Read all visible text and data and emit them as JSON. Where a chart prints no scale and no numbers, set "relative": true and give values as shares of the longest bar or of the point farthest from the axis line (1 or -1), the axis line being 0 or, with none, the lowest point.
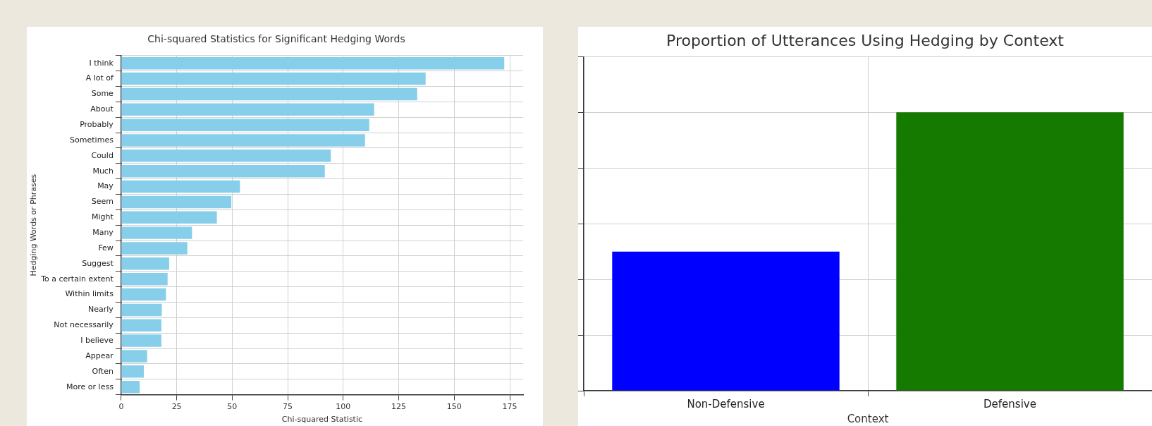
{
  "chart_data": [
    {
      "type": "bar",
      "orientation": "horizontal",
      "title": "Chi-squared Statistics for Significant Hedging Words",
      "xlabel": "Chi-squared Statistic",
      "ylabel": "Hedging Words or Phrases",
      "categories": [
        "I think",
        "A lot of",
        "Some",
        "About",
        "Probably",
        "Sometimes",
        "Could",
        "Much",
        "May",
        "Seem",
        "Might",
        "Many",
        "Few",
        "Suggest",
        "To a certain extent",
        "Within limits",
        "Nearly",
        "Not necessarily",
        "I believe",
        "Appear",
        "Often",
        "More or less"
      ],
      "values": [
        172.5,
        137.1,
        133.3,
        113.9,
        111.7,
        109.8,
        94.4,
        91.7,
        53.5,
        49.6,
        43.1,
        31.9,
        29.8,
        21.6,
        20.9,
        20.2,
        18.3,
        18.1,
        18.1,
        11.7,
        10.2,
        8.3
      ],
      "color": "#87ceeb",
      "xlim": [
        0,
        181
      ],
      "xticks": [
        0,
        25,
        50,
        75,
        100,
        125,
        150,
        175
      ],
      "grid": true
    },
    {
      "type": "bar",
      "title": "Proportion of Utterances Using Hedging by Context",
      "xlabel": "Context",
      "categories": [
        "Non-Defensive",
        "Defensive"
      ],
      "values": [
        0.5,
        1
      ],
      "colors": [
        "#0000ff",
        "#157a00"
      ],
      "relative": true,
      "grid": true
    }
  ]
}
